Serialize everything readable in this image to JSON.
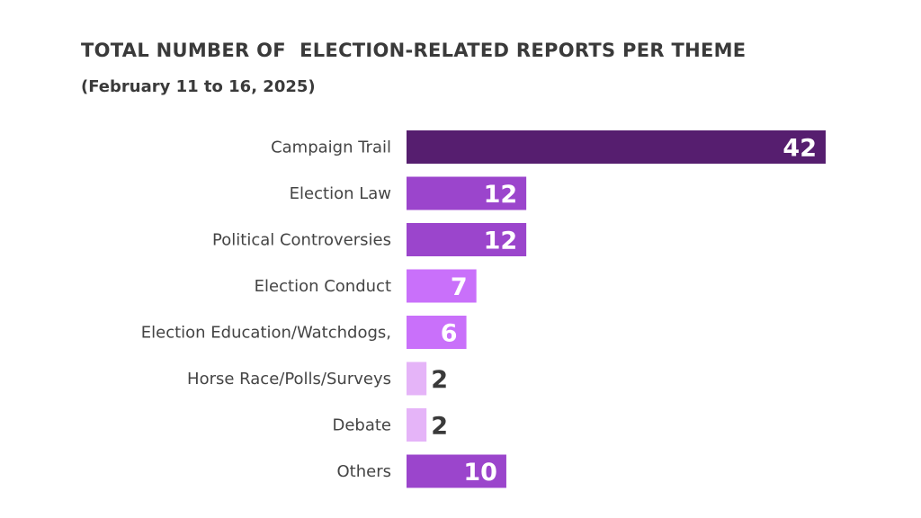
{
  "chart_data": {
    "type": "bar",
    "orientation": "horizontal",
    "title": "TOTAL NUMBER OF  ELECTION-RELATED REPORTS PER THEME",
    "subtitle": "(February 11 to 16, 2025)",
    "categories": [
      "Campaign Trail",
      "Election Law",
      "Political Controversies",
      "Election Conduct",
      "Election Education/Watchdogs,",
      "Horse Race/Polls/Surveys",
      "Debate",
      "Others"
    ],
    "values": [
      42,
      12,
      12,
      7,
      6,
      2,
      2,
      10
    ],
    "colors": [
      "#561e6f",
      "#9b45cc",
      "#9b45cc",
      "#c970fa",
      "#c970fa",
      "#e5b4f8",
      "#e5b4f8",
      "#9b45cc"
    ],
    "xlim": [
      0,
      42
    ],
    "grid": false,
    "data_labels": true
  }
}
